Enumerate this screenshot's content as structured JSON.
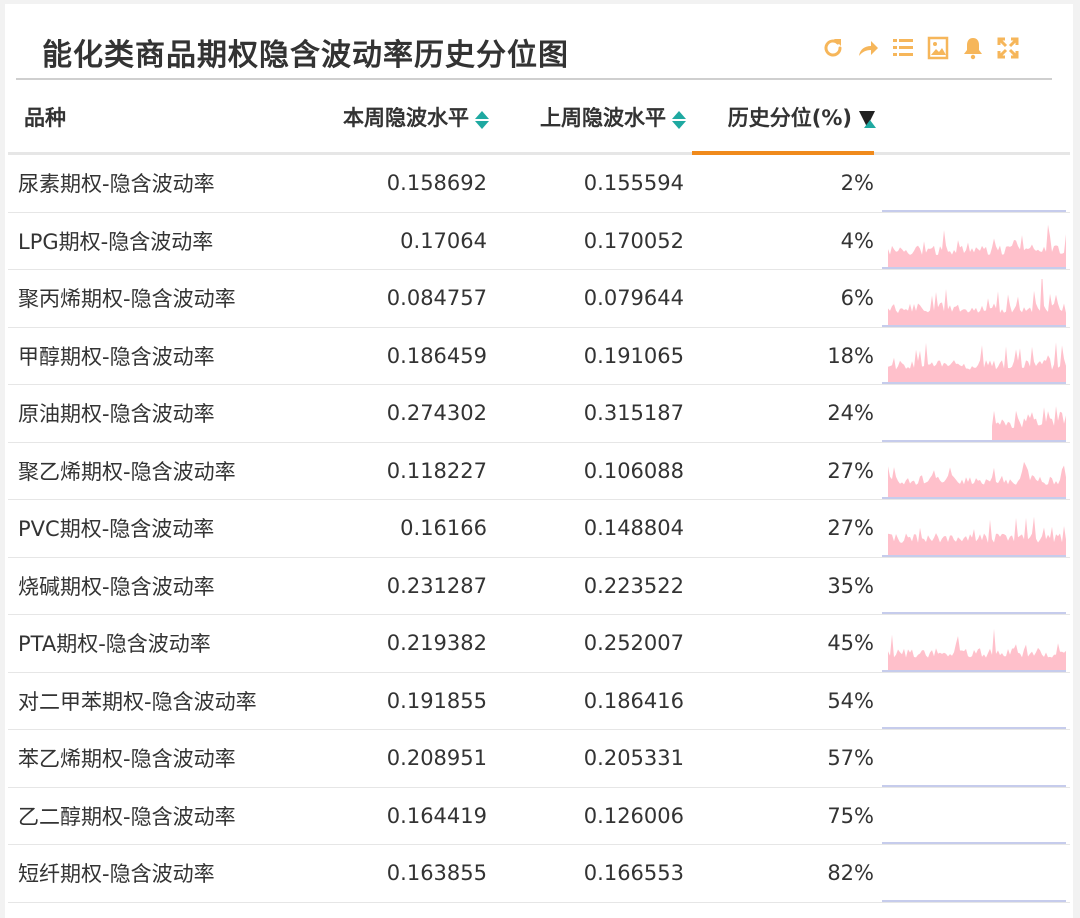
{
  "title": "能化类商品期权隐含波动率历史分位图",
  "toolbar": [
    {
      "name": "refresh-icon",
      "icon": "refresh"
    },
    {
      "name": "share-icon",
      "icon": "share"
    },
    {
      "name": "list-icon",
      "icon": "list"
    },
    {
      "name": "image-export-icon",
      "icon": "image"
    },
    {
      "name": "bell-icon",
      "icon": "bell"
    },
    {
      "name": "fullscreen-icon",
      "icon": "fullscreen"
    }
  ],
  "colors": {
    "accent_orange": "#f08a1c",
    "icon_orange": "#f6b65a",
    "sort_teal": "#1fa9a1",
    "spark_fill": "#ffc0cb",
    "spark_base": "#c6ccec"
  },
  "columns": {
    "variety": "品种",
    "this_week": "本周隐波水平",
    "last_week": "上周隐波水平",
    "percentile": "历史分位(%)"
  },
  "rows": [
    {
      "name": "尿素期权-隐含波动率",
      "this_week": "0.158692",
      "last_week": "0.155594",
      "percentile": "2%",
      "spark": "none"
    },
    {
      "name": "LPG期权-隐含波动率",
      "this_week": "0.17064",
      "last_week": "0.170052",
      "percentile": "4%",
      "spark": "full"
    },
    {
      "name": "聚丙烯期权-隐含波动率",
      "this_week": "0.084757",
      "last_week": "0.079644",
      "percentile": "6%",
      "spark": "full"
    },
    {
      "name": "甲醇期权-隐含波动率",
      "this_week": "0.186459",
      "last_week": "0.191065",
      "percentile": "18%",
      "spark": "full"
    },
    {
      "name": "原油期权-隐含波动率",
      "this_week": "0.274302",
      "last_week": "0.315187",
      "percentile": "24%",
      "spark": "partial"
    },
    {
      "name": "聚乙烯期权-隐含波动率",
      "this_week": "0.118227",
      "last_week": "0.106088",
      "percentile": "27%",
      "spark": "full"
    },
    {
      "name": "PVC期权-隐含波动率",
      "this_week": "0.16166",
      "last_week": "0.148804",
      "percentile": "27%",
      "spark": "full"
    },
    {
      "name": "烧碱期权-隐含波动率",
      "this_week": "0.231287",
      "last_week": "0.223522",
      "percentile": "35%",
      "spark": "none"
    },
    {
      "name": "PTA期权-隐含波动率",
      "this_week": "0.219382",
      "last_week": "0.252007",
      "percentile": "45%",
      "spark": "full"
    },
    {
      "name": "对二甲苯期权-隐含波动率",
      "this_week": "0.191855",
      "last_week": "0.186416",
      "percentile": "54%",
      "spark": "none"
    },
    {
      "name": "苯乙烯期权-隐含波动率",
      "this_week": "0.208951",
      "last_week": "0.205331",
      "percentile": "57%",
      "spark": "none"
    },
    {
      "name": "乙二醇期权-隐含波动率",
      "this_week": "0.164419",
      "last_week": "0.126006",
      "percentile": "75%",
      "spark": "none"
    },
    {
      "name": "短纤期权-隐含波动率",
      "this_week": "0.163855",
      "last_week": "0.166553",
      "percentile": "82%",
      "spark": "none"
    }
  ]
}
